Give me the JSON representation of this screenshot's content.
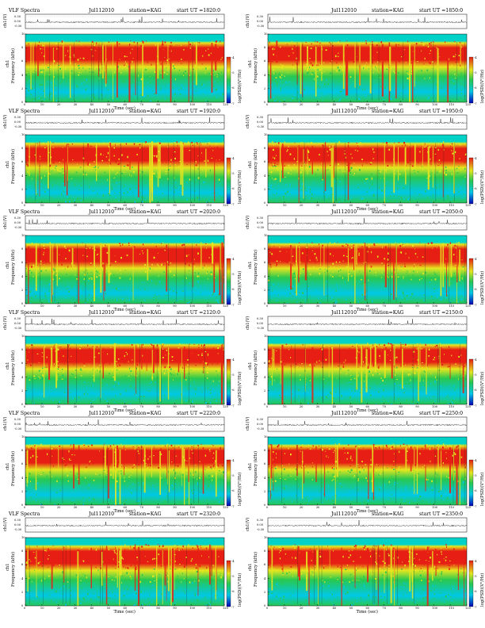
{
  "panels": [
    {
      "title": "VLF Spectra",
      "date": "Jul112010",
      "station": "station=KAG",
      "start": "start  UT =1820:0",
      "show_title": true
    },
    {
      "title": "",
      "date": "Jul112010",
      "station": "station=KAG",
      "start": "start  UT =1850:0",
      "show_title": false
    },
    {
      "title": "VLF Spectra",
      "date": "Jul112010",
      "station": "station=KAG",
      "start": "start  UT =1920:0",
      "show_title": true
    },
    {
      "title": "",
      "date": "Jul112010",
      "station": "station=KAG",
      "start": "start  UT =1950:0",
      "show_title": false
    },
    {
      "title": "VLF Spectra",
      "date": "Jul112010",
      "station": "station=KAG",
      "start": "start  UT =2020:0",
      "show_title": true
    },
    {
      "title": "",
      "date": "Jul112010",
      "station": "station=KAG",
      "start": "start  UT =2050:0",
      "show_title": false
    },
    {
      "title": "VLF Spectra",
      "date": "Jul112010",
      "station": "station=KAG",
      "start": "start  UT =2120:0",
      "show_title": true
    },
    {
      "title": "",
      "date": "Jul112010",
      "station": "station=KAG",
      "start": "start  UT =2150:0",
      "show_title": false
    },
    {
      "title": "VLF Spectra",
      "date": "Jul112010",
      "station": "station=KAG",
      "start": "start  UT =2220:0",
      "show_title": true
    },
    {
      "title": "",
      "date": "Jul112010",
      "station": "station=KAG",
      "start": "start  UT =2250:0",
      "show_title": false
    },
    {
      "title": "VLF Spectra",
      "date": "Jul112010",
      "station": "station=KAG",
      "start": "start  UT =2320:0",
      "show_title": true
    },
    {
      "title": "",
      "date": "Jul112010",
      "station": "station=KAG",
      "start": "start  UT =2350:0",
      "show_title": false
    }
  ],
  "labels": {
    "waveform_ylabel": "ch1(V)",
    "spectrogram_ylabel": "Frequency (kHz)",
    "channel_label": "ch1",
    "xlabel": "Time (sec)",
    "colorbar_label": "log(PSD)(V²/Hz)"
  },
  "waveform_ticks": [
    "0.30",
    "0.00",
    "-0.30"
  ],
  "colorbar_ticks": [
    "-4",
    "-5",
    "-6",
    "-7"
  ],
  "colors": {
    "low": "#0000b4",
    "low_mid": "#00c8e6",
    "mid": "#28c850",
    "high_mid": "#e6e61e",
    "high": "#e61e14",
    "band_top": "#00d2c8"
  },
  "chart_data": {
    "type": "heatmap",
    "title": "VLF Spectra",
    "xlabel": "Time (sec)",
    "ylabel": "Frequency (kHz)",
    "colorbar_label": "log(PSD)(V²/Hz)",
    "xlim": [
      0,
      120
    ],
    "ylim": [
      0,
      10
    ],
    "xticks": [
      0,
      10,
      20,
      30,
      40,
      50,
      60,
      70,
      80,
      90,
      100,
      110,
      120
    ],
    "yticks": [
      0,
      2,
      4,
      6,
      8,
      10
    ],
    "waveform_ylim": [
      -0.3,
      0.3
    ],
    "colorbar_range": [
      -7,
      -4
    ],
    "grid": false
  }
}
